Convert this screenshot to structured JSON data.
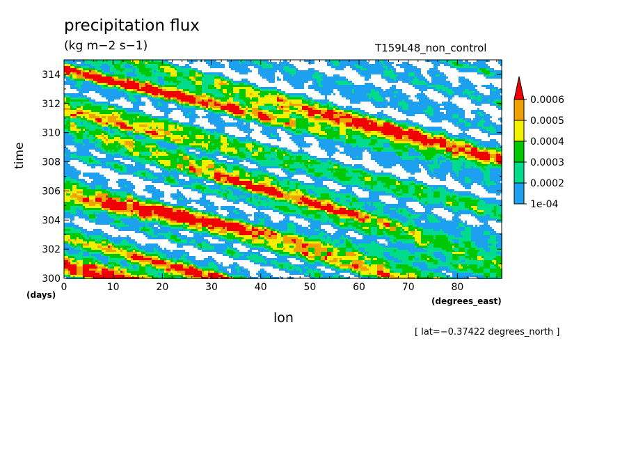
{
  "chart_data": {
    "type": "heatmap",
    "title": "precipitation flux",
    "units": "(kg m−2 s−1)",
    "run_label": "T159L48_non_control",
    "xlabel": "lon",
    "ylabel": "time",
    "x_units": "(degrees_east)",
    "y_units": "(days)",
    "annotation": "[ lat=−0.37422 degrees_north ]",
    "xlim": [
      0,
      89
    ],
    "ylim": [
      300,
      315
    ],
    "x_ticks": [
      0,
      10,
      20,
      30,
      40,
      50,
      60,
      70,
      80
    ],
    "y_ticks": [
      300,
      302,
      304,
      306,
      308,
      310,
      312,
      314
    ],
    "colorbar": {
      "levels": [
        0.0001,
        0.0002,
        0.0003,
        0.0004,
        0.0005,
        0.0006
      ],
      "level_labels": [
        "1e-04",
        "0.0002",
        "0.0003",
        "0.0004",
        "0.0005",
        "0.0006"
      ],
      "colors": [
        "#ffffff",
        "#1ea0f0",
        "#00dc8c",
        "#00c800",
        "#f0f000",
        "#f0a000",
        "#f00000"
      ],
      "extend": "max"
    },
    "bands": [
      {
        "t0": 300.8,
        "slope": 0.085,
        "amp": 0.0006,
        "width": 0.55,
        "lon_center": 12,
        "lon_width": 22
      },
      {
        "t0": 301.5,
        "slope": 0.09,
        "amp": 0.0004,
        "width": 0.5,
        "lon_center": 55,
        "lon_width": 30
      },
      {
        "t0": 302.8,
        "slope": 0.095,
        "amp": 0.0007,
        "width": 0.6,
        "lon_center": 50,
        "lon_width": 32
      },
      {
        "t0": 305.6,
        "slope": 0.06,
        "amp": 0.00055,
        "width": 0.55,
        "lon_center": 18,
        "lon_width": 20
      },
      {
        "t0": 306.2,
        "slope": 0.09,
        "amp": 0.00045,
        "width": 0.5,
        "lon_center": 60,
        "lon_width": 25
      },
      {
        "t0": 310.2,
        "slope": 0.1,
        "amp": 0.0006,
        "width": 0.55,
        "lon_center": 45,
        "lon_width": 25
      },
      {
        "t0": 311.6,
        "slope": 0.08,
        "amp": 0.0005,
        "width": 0.6,
        "lon_center": 12,
        "lon_width": 20
      },
      {
        "t0": 314.3,
        "slope": 0.075,
        "amp": 0.0006,
        "width": 0.5,
        "lon_center": 20,
        "lon_width": 25
      },
      {
        "t0": 315.8,
        "slope": 0.085,
        "amp": 0.0006,
        "width": 0.5,
        "lon_center": 65,
        "lon_width": 25
      }
    ]
  }
}
